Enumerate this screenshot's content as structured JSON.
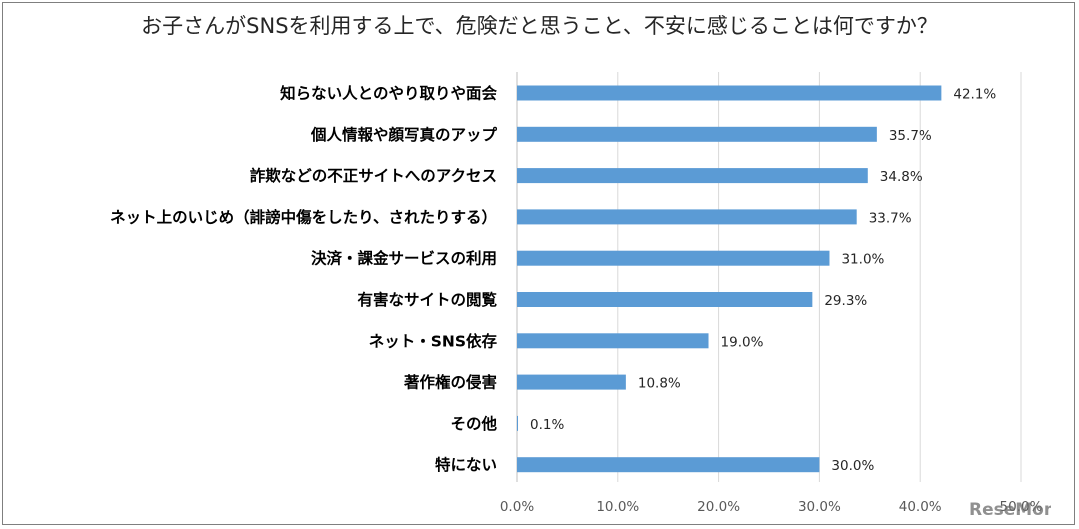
{
  "chart_data": {
    "type": "bar",
    "orientation": "horizontal",
    "title": "お子さんがSNSを利用する上で、危険だと思うこと、不安に感じることは何ですか？",
    "categories": [
      "知らない人とのやり取りや面会",
      "個人情報や顔写真のアップ",
      "詐欺などの不正サイトへのアクセス",
      "ネット上のいじめ（誹謗中傷をしたり、されたりする）",
      "決済・課金サービスの利用",
      "有害なサイトの閲覧",
      "ネット・SNS依存",
      "著作権の侵害",
      "その他",
      "特にない"
    ],
    "values": [
      42.1,
      35.7,
      34.8,
      33.7,
      31.0,
      29.3,
      19.0,
      10.8,
      0.1,
      30.0
    ],
    "value_labels": [
      "42.1%",
      "35.7%",
      "34.8%",
      "33.7%",
      "31.0%",
      "29.3%",
      "19.0%",
      "10.8%",
      "0.1%",
      "30.0%"
    ],
    "x_ticks": [
      "0.0%",
      "10.0%",
      "20.0%",
      "30.0%",
      "40.0%",
      "50.0%"
    ],
    "xlim": [
      0,
      50
    ],
    "grid": true,
    "bar_color": "#5b9bd5",
    "grid_color": "#d9d9d9"
  }
}
